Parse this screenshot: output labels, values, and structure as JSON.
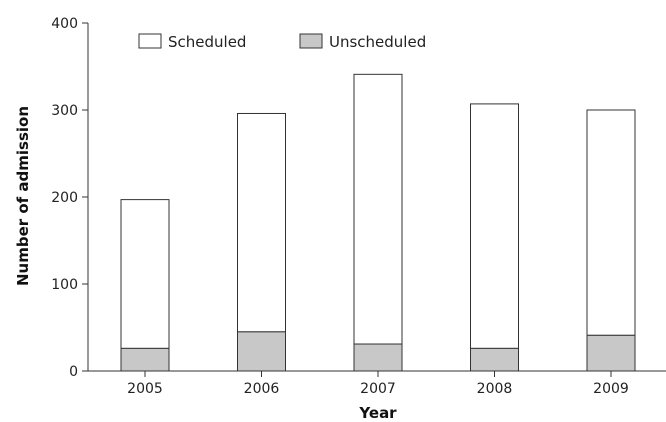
{
  "chart_data": {
    "type": "bar",
    "stacked": true,
    "categories": [
      "2005",
      "2006",
      "2007",
      "2008",
      "2009"
    ],
    "series": [
      {
        "name": "Unscheduled",
        "values": [
          26,
          45,
          31,
          26,
          41
        ],
        "color": "#c8c8c8"
      },
      {
        "name": "Scheduled",
        "values": [
          171,
          251,
          310,
          281,
          259
        ],
        "color": "#ffffff"
      }
    ],
    "xlabel": "Year",
    "ylabel": "Number of admission",
    "ylim": [
      0,
      400
    ],
    "yticks": [
      0,
      100,
      200,
      300,
      400
    ],
    "grid": false,
    "legend_position": "top",
    "legend_order": [
      "Scheduled",
      "Unscheduled"
    ]
  }
}
